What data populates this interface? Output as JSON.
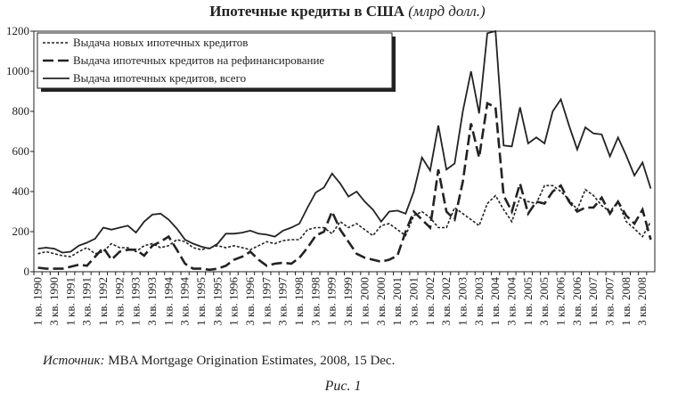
{
  "chart_data": {
    "type": "line",
    "title": "Ипотечные кредиты в США",
    "subtitle": "(млрд долл.)",
    "source_label": "Источник:",
    "source": "MBA Mortgage Origination Estimates, 2008, 15 Dec.",
    "caption": "Рис. 1",
    "categories": [
      "1 кв. 1990",
      null,
      "3 кв. 1990",
      null,
      "1 кв. 1991",
      null,
      "3 кв. 1991",
      null,
      "1 кв. 1992",
      null,
      "3 кв. 1992",
      null,
      "1 кв. 1993",
      null,
      "3 кв. 1993",
      null,
      "1 кв. 1994",
      null,
      "3 кв. 1994",
      null,
      "1 кв. 1995",
      null,
      "3 кв. 1995",
      null,
      "1 кв. 1996",
      null,
      "3 кв. 1996",
      null,
      "1 кв. 1997",
      null,
      "3 кв. 1997",
      null,
      "1 кв. 1998",
      null,
      "3 кв. 1998",
      null,
      "1 кв. 1999",
      null,
      "3 кв. 1999",
      null,
      "1 кв. 2000",
      null,
      "3 кв. 2000",
      null,
      "1 кв. 2001",
      null,
      "3 кв. 2001",
      null,
      "1 кв. 2002",
      null,
      "3 кв. 2002",
      null,
      "1 кв. 2003",
      null,
      "3 кв. 2003",
      null,
      "1 кв. 2004",
      null,
      "3 кв. 2004",
      null,
      "1 кв. 2005",
      null,
      "3 кв. 2005",
      null,
      "1 кв. 2006",
      null,
      "3 кв. 2006",
      null,
      "1 кв. 2007",
      null,
      "3 кв. 2007",
      null,
      "1 кв. 2008",
      null,
      "3 кв. 2008",
      null
    ],
    "series": [
      {
        "name": "Выдача новых ипотечных кредитов",
        "color": "#222222",
        "style": "dotted",
        "values": [
          90,
          100,
          90,
          80,
          75,
          100,
          120,
          90,
          100,
          140,
          120,
          120,
          100,
          130,
          140,
          120,
          130,
          160,
          150,
          120,
          110,
          120,
          130,
          120,
          130,
          120,
          110,
          130,
          150,
          140,
          155,
          160,
          160,
          210,
          220,
          220,
          190,
          250,
          220,
          240,
          210,
          180,
          230,
          240,
          210,
          180,
          280,
          300,
          270,
          220,
          220,
          320,
          290,
          260,
          230,
          340,
          380,
          310,
          250,
          370,
          350,
          340,
          430,
          430,
          400,
          360,
          310,
          410,
          380,
          330,
          300,
          350,
          250,
          215,
          175,
          250
        ]
      },
      {
        "name": "Выдача ипотечных кредитов на рефинансирование",
        "color": "#222222",
        "style": "dashed",
        "values": [
          20,
          15,
          15,
          15,
          25,
          35,
          30,
          75,
          120,
          60,
          100,
          110,
          110,
          80,
          130,
          150,
          175,
          110,
          40,
          15,
          15,
          10,
          15,
          30,
          60,
          75,
          100,
          60,
          30,
          40,
          45,
          40,
          70,
          120,
          180,
          200,
          300,
          210,
          150,
          90,
          70,
          60,
          50,
          60,
          80,
          200,
          300,
          260,
          220,
          510,
          300,
          260,
          450,
          740,
          570,
          840,
          820,
          380,
          300,
          440,
          290,
          350,
          340,
          400,
          430,
          350,
          300,
          320,
          320,
          370,
          290,
          350,
          280,
          240,
          310,
          160
        ]
      },
      {
        "name": "Выдача ипотечных кредитов,  всего",
        "color": "#222222",
        "style": "solid",
        "values": [
          115,
          120,
          115,
          95,
          100,
          130,
          145,
          165,
          220,
          210,
          220,
          230,
          195,
          250,
          285,
          290,
          260,
          215,
          160,
          140,
          125,
          115,
          140,
          190,
          190,
          195,
          205,
          190,
          185,
          175,
          205,
          220,
          240,
          320,
          395,
          420,
          490,
          440,
          375,
          400,
          350,
          310,
          250,
          300,
          305,
          290,
          400,
          570,
          505,
          730,
          510,
          540,
          800,
          1000,
          790,
          1190,
          1200,
          630,
          625,
          820,
          640,
          670,
          640,
          800,
          860,
          730,
          610,
          720,
          690,
          685,
          575,
          670,
          580,
          480,
          545,
          415
        ]
      }
    ],
    "ylim": [
      0,
      1200
    ],
    "yticks": [
      0,
      200,
      400,
      600,
      800,
      1000,
      1200
    ]
  }
}
